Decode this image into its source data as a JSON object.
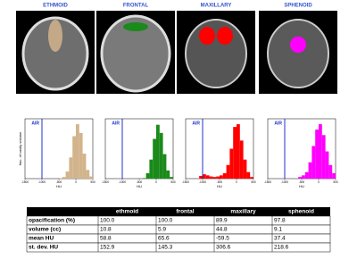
{
  "images": {
    "labels": [
      "ETHMOID",
      "FRONTAL",
      "MAXILLARY",
      "SPHENOID"
    ]
  },
  "chart_data": [
    {
      "type": "histogram",
      "bins": [
        -1500,
        -1400,
        -1300,
        -1200,
        -1100,
        -1000,
        -900,
        -800,
        -700,
        -600,
        -500,
        -400,
        -300,
        -200,
        -100,
        0,
        100,
        200,
        300,
        400,
        500
      ],
      "counts": [
        0,
        0,
        0,
        0,
        0,
        0,
        0,
        0,
        0,
        0,
        0.01,
        0.03,
        0.13,
        0.39,
        0.78,
        1.0,
        0.84,
        0.46,
        0.16,
        0.04
      ],
      "color": "#d2b48c",
      "xlim": [
        -1500,
        500
      ],
      "xticks": [
        -1500,
        -1000,
        -500,
        0,
        500
      ],
      "ylim": [
        0,
        1.1
      ],
      "x_label": "HU",
      "y_label": "frac. of cavity volume",
      "air_line": -1000,
      "air_label": "AIR"
    },
    {
      "type": "histogram",
      "bins": [
        -1500,
        -1400,
        -1300,
        -1200,
        -1100,
        -1000,
        -900,
        -800,
        -700,
        -600,
        -500,
        -400,
        -300,
        -200,
        -100,
        0,
        100,
        200,
        300,
        400,
        500
      ],
      "counts": [
        0,
        0,
        0,
        0,
        0,
        0,
        0,
        0,
        0,
        0,
        0,
        0.01,
        0.1,
        0.35,
        0.73,
        0.99,
        0.84,
        0.45,
        0.15,
        0.03
      ],
      "color": "#1a8a1a",
      "xlim": [
        -1500,
        500
      ],
      "xticks": [
        -1500,
        -1000,
        -500,
        0,
        500
      ],
      "ylim": [
        0,
        1.1
      ],
      "x_label": "HU",
      "air_line": -1000,
      "air_label": "AIR"
    },
    {
      "type": "histogram",
      "bins": [
        -1500,
        -1400,
        -1300,
        -1200,
        -1100,
        -1000,
        -900,
        -800,
        -700,
        -600,
        -500,
        -400,
        -300,
        -200,
        -100,
        0,
        100,
        200,
        300,
        400,
        500
      ],
      "counts": [
        0,
        0,
        0,
        0,
        0.05,
        0.08,
        0.06,
        0.04,
        0.03,
        0.04,
        0.06,
        0.1,
        0.25,
        0.55,
        0.95,
        1.0,
        0.7,
        0.35,
        0.12,
        0.03
      ],
      "color": "#ff0000",
      "xlim": [
        -1500,
        500
      ],
      "xticks": [
        -1500,
        -1000,
        -500,
        0,
        500
      ],
      "ylim": [
        0,
        1.1
      ],
      "x_label": "HU",
      "air_line": -1000,
      "air_label": "AIR"
    },
    {
      "type": "histogram",
      "bins": [
        -1500,
        -1400,
        -1300,
        -1200,
        -1100,
        -1000,
        -900,
        -800,
        -700,
        -600,
        -500,
        -400,
        -300,
        -200,
        -100,
        0,
        100,
        200,
        300,
        400,
        500
      ],
      "counts": [
        0,
        0,
        0,
        0,
        0,
        0,
        0,
        0,
        0,
        0.03,
        0.06,
        0.12,
        0.3,
        0.6,
        0.9,
        1.0,
        0.8,
        0.5,
        0.25,
        0.1
      ],
      "color": "#ff00ff",
      "xlim": [
        -1500,
        500
      ],
      "xticks": [
        -1500,
        -1000,
        -500,
        0,
        500
      ],
      "ylim": [
        0,
        1.1
      ],
      "x_label": "HU",
      "air_line": -1000,
      "air_label": "AIR"
    }
  ],
  "table": {
    "header": [
      "ethmoid",
      "frontal",
      "maxillary",
      "sphenoid"
    ],
    "rows": [
      [
        "opacification (%)",
        "100.0",
        "100.0",
        "89.9",
        "97.8"
      ],
      [
        "volume (cc)",
        "10.8",
        "5.9",
        "44.8",
        "9.1"
      ],
      [
        "mean HU",
        "58.8",
        "65.6",
        "-59.5",
        "37.4"
      ],
      [
        "st. dev. HU",
        "152.9",
        "145.3",
        "306.6",
        "218.6"
      ]
    ]
  }
}
